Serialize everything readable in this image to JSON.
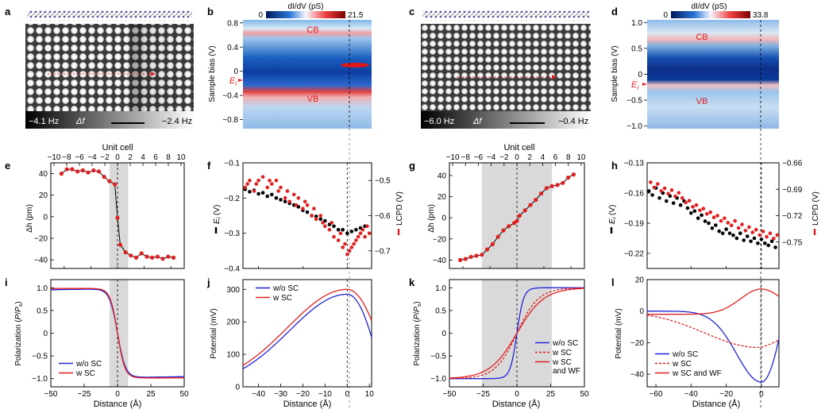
{
  "panels": {
    "a": {
      "letter": "a",
      "left_freq": "−4.1 Hz",
      "df": "Δf",
      "right_freq": "−2.4 Hz"
    },
    "b": {
      "letter": "b",
      "cbar_label": "dI/dV (pS)",
      "cbar_min": "0",
      "cbar_max": "21.5",
      "ylabel": "Sample bias (V)",
      "yticks": [
        "0.8",
        "0.4",
        "0",
        "−0.4",
        "−0.8"
      ],
      "cb": "CB",
      "vb": "VB",
      "ei": "E",
      "ei_sub": "i"
    },
    "c": {
      "letter": "c",
      "left_freq": "−6.0 Hz",
      "df": "Δf",
      "right_freq": "−0.4 Hz"
    },
    "d": {
      "letter": "d",
      "cbar_label": "dI/dV (pS)",
      "cbar_min": "0",
      "cbar_max": "33.8",
      "ylabel": "Sample bias (V)",
      "yticks": [
        "1.0",
        "0.5",
        "0",
        "−0.5",
        "−1.0"
      ],
      "cb": "CB",
      "vb": "VB",
      "ei": "E",
      "ei_sub": "i"
    },
    "e": {
      "letter": "e",
      "top_label": "Unit cell",
      "ylabel": "Δh (pm)"
    },
    "f": {
      "letter": "f",
      "left_label": "E",
      "left_sub": "i",
      "left_unit": " (V)",
      "right_label": "LCPD (V)"
    },
    "g": {
      "letter": "g",
      "top_label": "Unit cell",
      "ylabel": "Δh (pm)"
    },
    "h": {
      "letter": "h",
      "left_label": "E",
      "left_sub": "i",
      "left_unit": " (V)",
      "right_label": "LCPD (V)"
    },
    "i": {
      "letter": "i",
      "ylabel_pre": "Polarization (",
      "ylabel_p": "P",
      "ylabel_mid": "/",
      "ylabel_ps": "P",
      "ylabel_sub": "s",
      "ylabel_post": ")",
      "xlabel": "Distance (Å)"
    },
    "j": {
      "letter": "j",
      "ylabel": "Potential (mV)",
      "xlabel": "Distance (Å)"
    },
    "k": {
      "letter": "k",
      "ylabel_pre": "Polarization (",
      "ylabel_p": "P",
      "ylabel_mid": "/",
      "ylabel_ps": "P",
      "ylabel_sub": "s",
      "ylabel_post": ")",
      "xlabel": "Distance (Å)"
    },
    "l": {
      "letter": "l",
      "ylabel": "Potential (mV)",
      "xlabel": "Distance (Å)"
    }
  },
  "colors": {
    "blue": "#2323d8",
    "red": "#e02020",
    "black": "#000000",
    "shade": "#d9d9d9"
  },
  "chart_data": [
    {
      "id": "e",
      "type": "line",
      "xlim": [
        -50,
        50
      ],
      "ylim": [
        -48,
        50
      ],
      "xticks": [],
      "yticks": [
        -40,
        -20,
        0,
        20,
        40
      ],
      "top_ticks": [
        -10,
        -8,
        -6,
        -4,
        -2,
        0,
        2,
        4,
        6,
        8,
        10
      ],
      "top_range": [
        -10.5,
        10.5
      ],
      "shade": [
        -6,
        8
      ],
      "dashed_x": 0,
      "series": [
        {
          "color": "red",
          "marker": true,
          "line": "black",
          "x": [
            -42,
            -38,
            -34,
            -30,
            -26,
            -22,
            -18,
            -14,
            -10,
            -6,
            -2,
            0,
            2,
            6,
            10,
            14,
            18,
            22,
            26,
            30,
            34,
            38,
            42
          ],
          "y": [
            40,
            44,
            44,
            42,
            43,
            41,
            43,
            42,
            37,
            33,
            30,
            -1,
            -26,
            -33,
            -36,
            -38,
            -34,
            -37,
            -38,
            -37,
            -39,
            -37,
            -38
          ]
        }
      ]
    },
    {
      "id": "f",
      "type": "scatter",
      "xlim": [
        -47,
        11
      ],
      "ylim": [
        -0.4,
        -0.1
      ],
      "y2lim": [
        -0.75,
        -0.45
      ],
      "yticks": [
        -0.4,
        -0.3,
        -0.2,
        -0.1
      ],
      "y2ticks": [
        -0.7,
        -0.6,
        -0.5
      ],
      "xticks": [],
      "dashed_x": 0,
      "series": [
        {
          "color": "black",
          "axis": "left",
          "x": [
            -46,
            -44,
            -42,
            -40,
            -38,
            -36,
            -34,
            -32,
            -30,
            -28,
            -26,
            -24,
            -22,
            -20,
            -18,
            -16,
            -14,
            -12,
            -10,
            -8,
            -6,
            -4,
            -2,
            0,
            2,
            4,
            6,
            8
          ],
          "y": [
            -0.175,
            -0.182,
            -0.178,
            -0.188,
            -0.185,
            -0.195,
            -0.19,
            -0.2,
            -0.205,
            -0.21,
            -0.215,
            -0.22,
            -0.225,
            -0.235,
            -0.24,
            -0.25,
            -0.252,
            -0.26,
            -0.265,
            -0.275,
            -0.28,
            -0.29,
            -0.29,
            -0.3,
            -0.295,
            -0.29,
            -0.285,
            -0.28
          ]
        },
        {
          "color": "red",
          "axis": "right",
          "x": [
            -46,
            -45,
            -44,
            -42,
            -41,
            -40,
            -38,
            -36,
            -35,
            -34,
            -32,
            -31,
            -30,
            -28,
            -27,
            -26,
            -24,
            -23,
            -22,
            -20,
            -19,
            -18,
            -16,
            -15,
            -14,
            -12,
            -11,
            -10,
            -8,
            -7,
            -6,
            -4,
            -3,
            -2,
            -1,
            0,
            1,
            2,
            3,
            4,
            5,
            6,
            7,
            8,
            9,
            10
          ],
          "y": [
            -0.52,
            -0.51,
            -0.5,
            -0.53,
            -0.51,
            -0.5,
            -0.49,
            -0.52,
            -0.5,
            -0.51,
            -0.5,
            -0.53,
            -0.52,
            -0.55,
            -0.53,
            -0.56,
            -0.54,
            -0.57,
            -0.55,
            -0.58,
            -0.56,
            -0.57,
            -0.6,
            -0.58,
            -0.61,
            -0.6,
            -0.62,
            -0.63,
            -0.64,
            -0.62,
            -0.66,
            -0.67,
            -0.65,
            -0.69,
            -0.68,
            -0.71,
            -0.7,
            -0.69,
            -0.68,
            -0.67,
            -0.66,
            -0.65,
            -0.64,
            -0.66,
            -0.63,
            -0.65
          ]
        }
      ]
    },
    {
      "id": "g",
      "type": "line",
      "xlim": [
        -50,
        50
      ],
      "ylim": [
        -48,
        52
      ],
      "xticks": [],
      "yticks": [
        -40,
        -20,
        0,
        20,
        40
      ],
      "top_ticks": [
        -10,
        -8,
        -6,
        -4,
        -2,
        0,
        2,
        4,
        6,
        8,
        10
      ],
      "top_range": [
        -10.5,
        10.5
      ],
      "shade": [
        -26,
        26
      ],
      "dashed_x": 0,
      "series": [
        {
          "color": "red",
          "marker": true,
          "line": "black",
          "x": [
            -42,
            -38,
            -34,
            -30,
            -26,
            -22,
            -18,
            -14,
            -10,
            -6,
            -2,
            0,
            2,
            6,
            10,
            14,
            18,
            22,
            26,
            30,
            34,
            38,
            42
          ],
          "y": [
            -40,
            -39,
            -37,
            -36,
            -35,
            -30,
            -25,
            -18,
            -12,
            -8,
            -5,
            -3,
            2,
            7,
            12,
            17,
            23,
            28,
            30,
            31,
            33,
            38,
            41
          ]
        }
      ]
    },
    {
      "id": "h",
      "type": "scatter",
      "xlim": [
        -65,
        10
      ],
      "ylim": [
        -0.235,
        -0.13
      ],
      "y2lim": [
        -0.78,
        -0.66
      ],
      "yticks": [
        -0.22,
        -0.19,
        -0.16,
        -0.13
      ],
      "y2ticks": [
        -0.75,
        -0.72,
        -0.69,
        -0.66
      ],
      "xticks": [],
      "dashed_x": 0,
      "series": [
        {
          "color": "black",
          "axis": "left",
          "x": [
            -64,
            -62,
            -60,
            -58,
            -56,
            -54,
            -52,
            -50,
            -48,
            -46,
            -44,
            -42,
            -40,
            -38,
            -36,
            -34,
            -32,
            -30,
            -28,
            -26,
            -24,
            -22,
            -20,
            -18,
            -16,
            -14,
            -12,
            -10,
            -8,
            -6,
            -4,
            -2,
            0,
            2,
            4,
            6,
            8
          ],
          "y": [
            -0.158,
            -0.162,
            -0.155,
            -0.165,
            -0.16,
            -0.168,
            -0.163,
            -0.17,
            -0.165,
            -0.172,
            -0.168,
            -0.175,
            -0.18,
            -0.178,
            -0.185,
            -0.182,
            -0.188,
            -0.19,
            -0.195,
            -0.192,
            -0.198,
            -0.2,
            -0.196,
            -0.2,
            -0.202,
            -0.205,
            -0.2,
            -0.207,
            -0.203,
            -0.208,
            -0.205,
            -0.21,
            -0.206,
            -0.21,
            -0.212,
            -0.208,
            -0.214
          ]
        },
        {
          "color": "red",
          "axis": "right",
          "x": [
            -63,
            -61,
            -59,
            -57,
            -55,
            -53,
            -51,
            -49,
            -47,
            -45,
            -43,
            -41,
            -39,
            -37,
            -35,
            -33,
            -31,
            -29,
            -27,
            -25,
            -23,
            -21,
            -19,
            -17,
            -15,
            -13,
            -11,
            -9,
            -7,
            -5,
            -3,
            -1,
            1,
            3,
            5,
            7,
            9
          ],
          "y": [
            -0.682,
            -0.688,
            -0.684,
            -0.692,
            -0.689,
            -0.695,
            -0.691,
            -0.698,
            -0.694,
            -0.7,
            -0.705,
            -0.703,
            -0.71,
            -0.708,
            -0.714,
            -0.712,
            -0.718,
            -0.716,
            -0.722,
            -0.72,
            -0.726,
            -0.723,
            -0.728,
            -0.731,
            -0.726,
            -0.734,
            -0.73,
            -0.737,
            -0.733,
            -0.739,
            -0.736,
            -0.742,
            -0.738,
            -0.744,
            -0.74,
            -0.746,
            -0.742
          ]
        }
      ]
    },
    {
      "id": "i",
      "type": "line",
      "xlim": [
        -50,
        50
      ],
      "ylim": [
        -1.18,
        1.18
      ],
      "xticks": [
        -50,
        -25,
        0,
        25,
        50
      ],
      "yticks": [
        -1.0,
        -0.5,
        0,
        0.5,
        1.0
      ],
      "shade": [
        -6,
        8
      ],
      "dashed_x": 0,
      "series": [
        {
          "name": "w/o SC",
          "color": "blue",
          "model": "i1"
        },
        {
          "name": "w SC",
          "color": "red",
          "model": "i2"
        }
      ],
      "legend": "bottom-left"
    },
    {
      "id": "j",
      "type": "line",
      "xlim": [
        -47,
        11
      ],
      "ylim": [
        0,
        330
      ],
      "xticks": [
        -40,
        -30,
        -20,
        -10,
        0,
        10
      ],
      "yticks": [
        0,
        100,
        200,
        300
      ],
      "dashed_x": 0,
      "series": [
        {
          "name": "w/o SC",
          "color": "blue",
          "model": "j1"
        },
        {
          "name": "w SC",
          "color": "red",
          "model": "j2"
        }
      ],
      "legend": "top-left"
    },
    {
      "id": "k",
      "type": "line",
      "xlim": [
        -50,
        50
      ],
      "ylim": [
        -1.18,
        1.18
      ],
      "xticks": [
        -50,
        -25,
        0,
        25,
        50
      ],
      "yticks": [
        -1.0,
        -0.5,
        0,
        0.5,
        1.0
      ],
      "shade": [
        -26,
        26
      ],
      "dashed_x": 0,
      "series": [
        {
          "name": "w/o SC",
          "color": "blue",
          "model": "k1"
        },
        {
          "name": "w SC",
          "color": "red",
          "dash": true,
          "model": "k2"
        },
        {
          "name": "w SC\nand WF",
          "color": "red",
          "model": "k3"
        }
      ],
      "legend": "bottom-right"
    },
    {
      "id": "l",
      "type": "line",
      "xlim": [
        -65,
        10
      ],
      "ylim": [
        -48,
        20
      ],
      "xticks": [
        -60,
        -40,
        -20,
        0
      ],
      "yticks": [
        -40,
        -20,
        0,
        20
      ],
      "dashed_x": 0,
      "series": [
        {
          "name": "w/o SC",
          "color": "blue",
          "model": "l1"
        },
        {
          "name": "w SC",
          "color": "red",
          "dash": true,
          "model": "l2"
        },
        {
          "name": "w SC and WF",
          "color": "red",
          "model": "l3"
        }
      ],
      "legend": "bottom-left"
    }
  ]
}
